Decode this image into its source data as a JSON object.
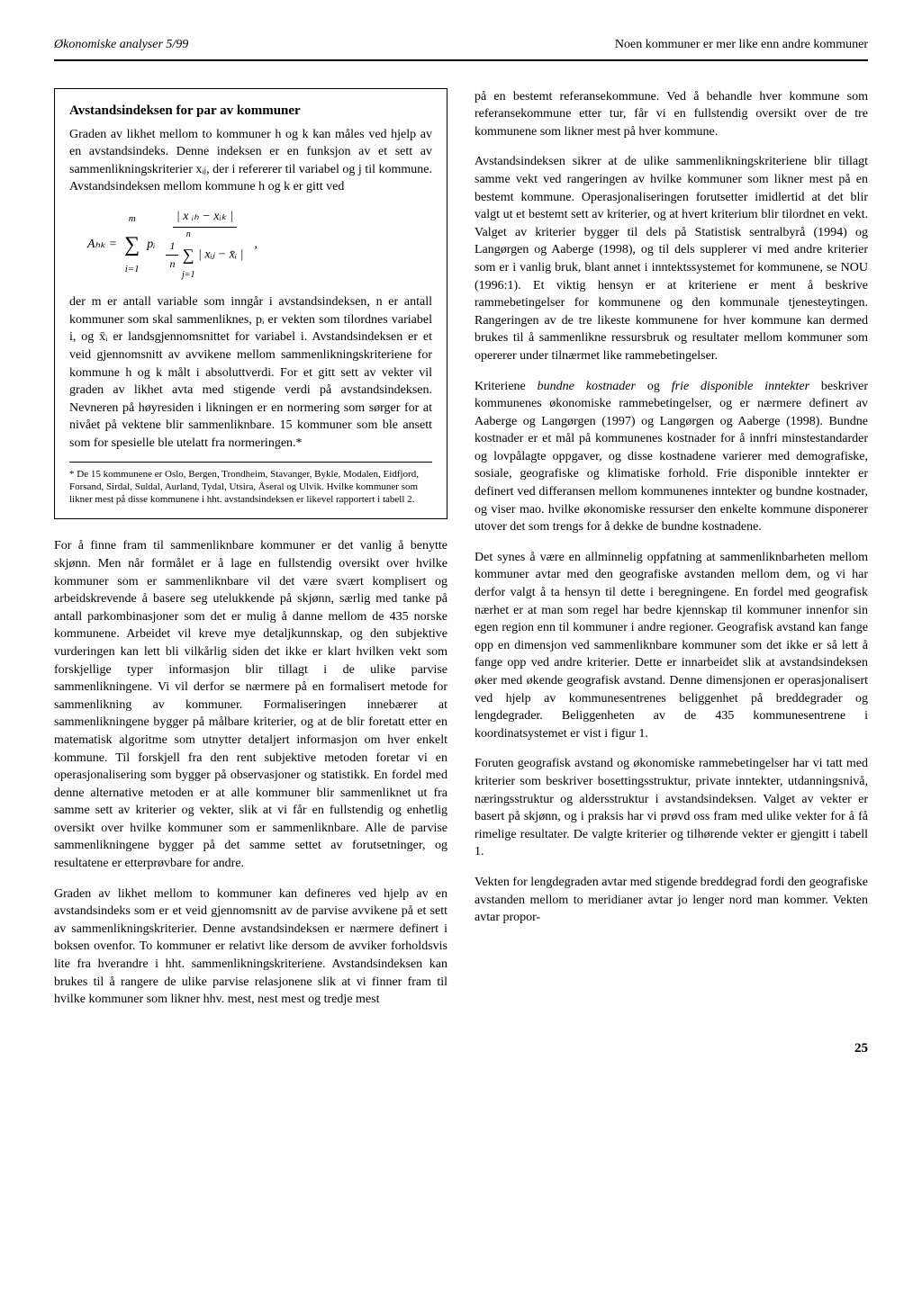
{
  "header": {
    "left": "Økonomiske analyser 5/99",
    "right": "Noen kommuner er mer like enn andre kommuner"
  },
  "box": {
    "title": "Avstandsindeksen for par av kommuner",
    "para1": "Graden av likhet mellom to kommuner h og k kan måles ved hjelp av en avstandsindeks. Denne indeksen er en funksjon av et sett av sammenlikningskriterier xᵢⱼ, der i refererer til variabel og j til kommune. Avstandsindeksen mellom kommune h og k er gitt ved",
    "formula_lhs": "Aₕₖ =",
    "formula_sum_top": "m",
    "formula_sum_bot": "i=1",
    "formula_pi": "pᵢ",
    "formula_num": "| x ᵢₕ − xᵢₖ |",
    "formula_den_frac": "1/n",
    "formula_den_sum_top": "n",
    "formula_den_sum_bot": "j=1",
    "formula_den_rest": "| xᵢⱼ − x̄ᵢ |",
    "formula_comma": ",",
    "para2": "der m er antall variable som inngår i avstandsindeksen, n er antall kommuner som skal sammenliknes, pᵢ er vekten som tilordnes variabel i, og x̄ᵢ er landsgjennomsnittet for variabel i. Avstandsindeksen er et veid gjennomsnitt av avvikene mellom sammenlikningskriteriene for kommune h og k målt i absoluttverdi. For et gitt sett av vekter vil graden av likhet avta med stigende verdi på avstandsindeksen. Nevneren på høyresiden i likningen er en normering som sørger for at nivået på vektene blir sammenliknbare. 15 kommuner som ble ansett som for spesielle ble utelatt fra normeringen.*",
    "footnote": "* De 15 kommunene er Oslo, Bergen, Trondheim, Stavanger, Bykle, Modalen, Eidfjord, Forsand, Sirdal, Suldal, Aurland, Tydal, Utsira, Åseral og Ulvik. Hvilke kommuner som likner mest på disse kommunene i hht. avstandsindeksen er likevel rapportert i tabell 2."
  },
  "left_paras": {
    "p1": "For å finne fram til sammenliknbare kommuner er det vanlig å benytte skjønn. Men når formålet er å lage en fullstendig oversikt over hvilke kommuner som er sammenliknbare vil det være svært komplisert og arbeidskrevende å basere seg utelukkende på skjønn, særlig med tanke på antall parkombinasjoner som det er mulig å danne mellom de 435 norske kommunene. Arbeidet vil kreve mye detaljkunnskap, og den subjektive vurderingen kan lett bli vilkårlig siden det ikke er klart hvilken vekt som forskjellige typer informasjon blir tillagt i de ulike parvise sammenlikningene. Vi vil derfor se nærmere på en formalisert metode for sammenlikning av kommuner. Formaliseringen innebærer at sammenlikningene bygger på målbare kriterier, og at de blir foretatt etter en matematisk algoritme som utnytter detaljert informasjon om hver enkelt kommune. Til forskjell fra den rent subjektive metoden foretar vi en operasjonalisering som bygger på observasjoner og statistikk. En fordel med denne alternative metoden er at alle kommuner blir sammenliknet ut fra samme sett av kriterier og vekter, slik at vi får en fullstendig og enhetlig oversikt over hvilke kommuner som er sammenliknbare. Alle de parvise sammenlikningene bygger på det samme settet av forutsetninger, og resultatene er etterprøvbare for andre.",
    "p2": "Graden av likhet mellom to kommuner kan defineres ved hjelp av en avstandsindeks som er et veid gjennomsnitt av de parvise avvikene på et sett av sammenlikningskriterier. Denne avstandsindeksen er nærmere definert i boksen ovenfor. To kommuner er relativt like dersom de avviker forholdsvis lite fra hverandre i hht. sammenlikningskriteriene. Avstandsindeksen kan brukes til å rangere de ulike parvise relasjonene slik at vi finner fram til hvilke kommuner som likner hhv. mest, nest mest og tredje mest"
  },
  "right_paras": {
    "p1": "på en bestemt referansekommune. Ved å behandle hver kommune som referansekommune etter tur, får vi en fullstendig oversikt over de tre kommunene som likner mest på hver kommune.",
    "p2": "Avstandsindeksen sikrer at de ulike sammenlikningskriteriene blir tillagt samme vekt ved rangeringen av hvilke kommuner som likner mest på en bestemt kommune. Operasjonaliseringen forutsetter imidlertid at det blir valgt ut et bestemt sett av kriterier, og at hvert kriterium blir tilordnet en vekt. Valget av kriterier bygger til dels på Statistisk sentralbyrå (1994) og Langørgen og Aaberge (1998), og til dels supplerer vi med andre kriterier som er i vanlig bruk, blant annet i inntektssystemet for kommunene, se NOU (1996:1). Et viktig hensyn er at kriteriene er ment å beskrive rammebetingelser for kommunene og den kommunale tjenesteytingen. Rangeringen av de tre likeste kommunene for hver kommune kan dermed brukes til å sammenlikne ressursbruk og resultater mellom kommuner som opererer under tilnærmet like rammebetingelser.",
    "p3a": "Kriteriene ",
    "p3b": "bundne kostnader",
    "p3c": " og ",
    "p3d": "frie disponible inntekter",
    "p3e": " beskriver kommunenes økonomiske rammebetingelser, og er nærmere definert av Aaberge og Langørgen (1997) og Langørgen og Aaberge (1998). Bundne kostnader er et mål på kommunenes kostnader for å innfri minstestandarder og lovpålagte oppgaver, og disse kostnadene varierer med demografiske, sosiale, geografiske og klimatiske forhold. Frie disponible inntekter er definert ved differansen mellom kommunenes inntekter og bundne kostnader, og viser mao. hvilke økonomiske ressurser den enkelte kommune disponerer utover det som trengs for å dekke de bundne kostnadene.",
    "p4": "Det synes å være en allminnelig oppfatning at sammenliknbarheten mellom kommuner avtar med den geografiske avstanden mellom dem, og vi har derfor valgt å ta hensyn til dette i beregningene. En fordel med geografisk nærhet er at man som regel har bedre kjennskap til kommuner innenfor sin egen region enn til kommuner i andre regioner. Geografisk avstand kan fange opp en dimensjon ved sammenliknbare kommuner som det ikke er så lett å fange opp ved andre kriterier. Dette er innarbeidet slik at avstandsindeksen øker med økende geografisk avstand. Denne dimensjonen er operasjonalisert ved hjelp av kommunesentrenes beliggenhet på breddegrader og lengdegrader. Beliggenheten av de 435 kommunesentrene i koordinatsystemet er vist i figur 1.",
    "p5": "Foruten geografisk avstand og økonomiske rammebetingelser har vi tatt med kriterier som beskriver bosettingsstruktur, private inntekter, utdanningsnivå, næringsstruktur og aldersstruktur i avstandsindeksen. Valget av vekter er basert på skjønn, og i praksis har vi prøvd oss fram med ulike vekter for å få rimelige resultater. De valgte kriterier og tilhørende vekter er gjengitt i tabell 1.",
    "p6": "Vekten for lengdegraden avtar med stigende breddegrad fordi den geografiske avstanden mellom to meridianer avtar jo lenger nord man kommer. Vekten avtar propor-"
  },
  "page_number": "25"
}
